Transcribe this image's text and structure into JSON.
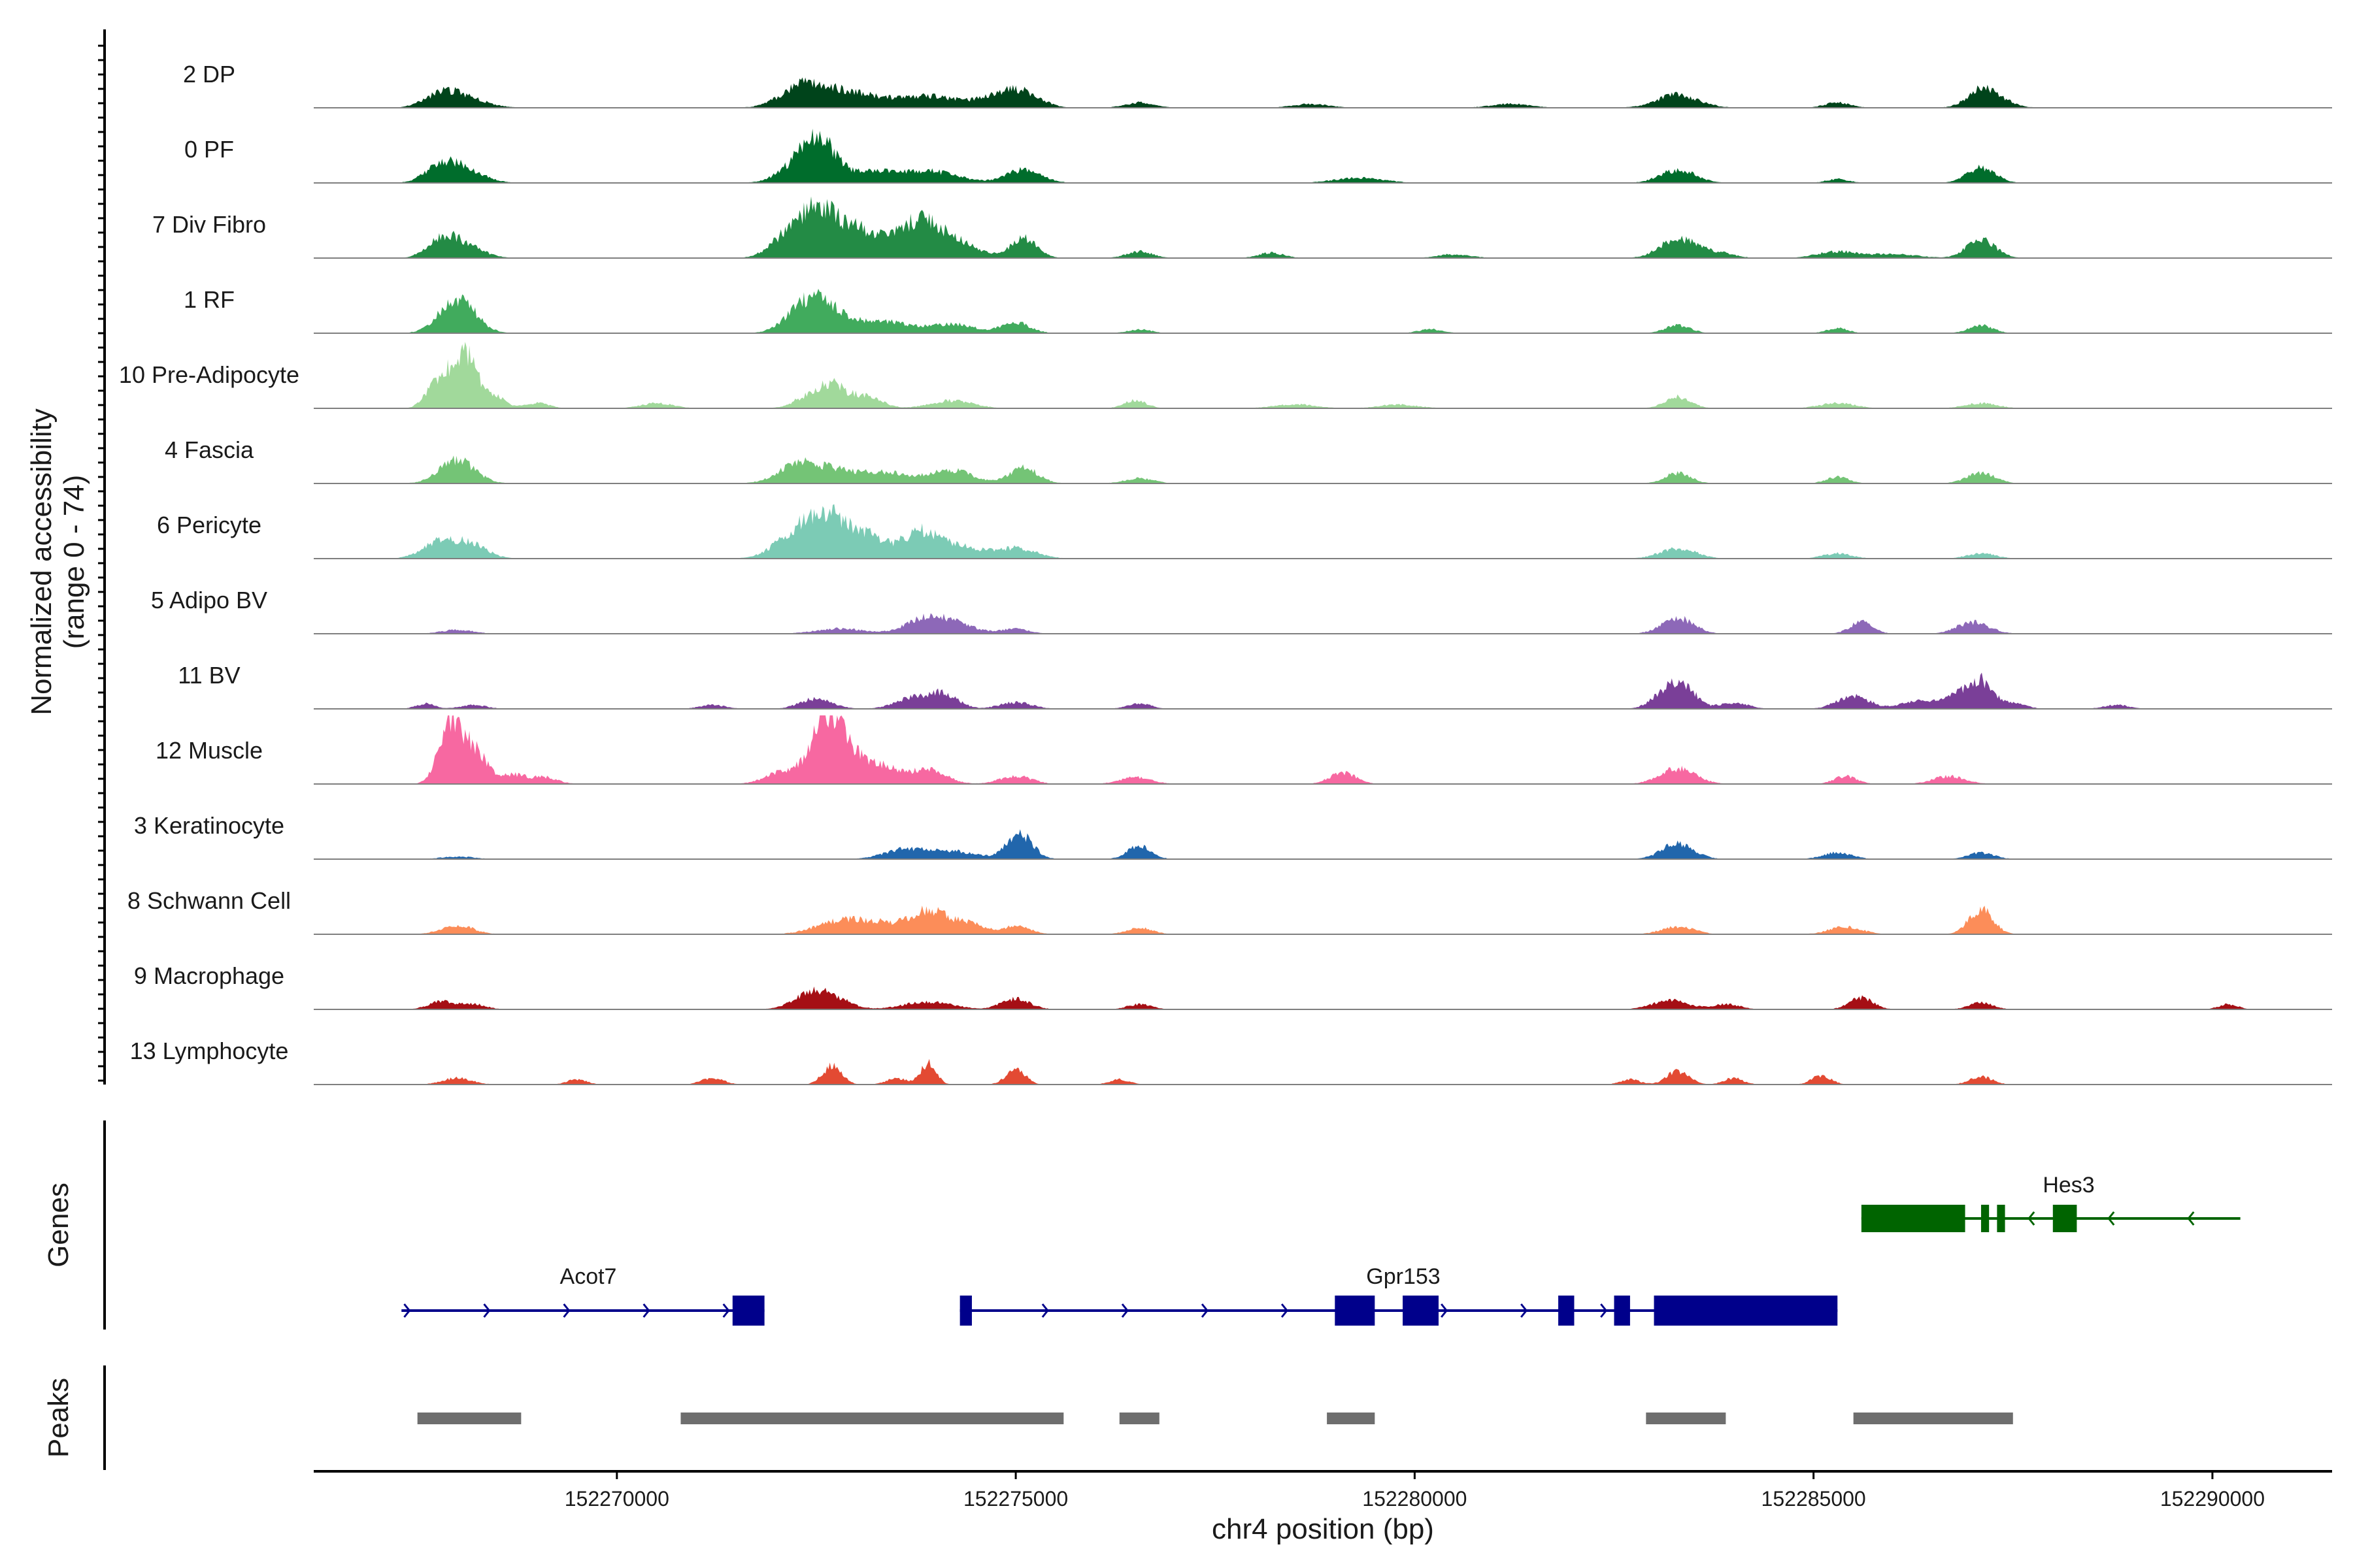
{
  "chart_data": {
    "type": "area",
    "title": "",
    "xlabel": "chr4 position (bp)",
    "ylabel_line1": "Normalized accessibility",
    "ylabel_line2": "(range 0 - 74)",
    "xlim": [
      152266200,
      152291500
    ],
    "ylim": [
      0,
      74
    ],
    "x_ticks": [
      152270000,
      152275000,
      152280000,
      152285000,
      152290000
    ],
    "x_tick_labels": [
      "152270000",
      "152275000",
      "152280000",
      "152285000",
      "152290000"
    ],
    "tracks": [
      {
        "name": "2 DP",
        "color": "#00441b",
        "peaks": [
          [
            152267800,
            9,
            220
          ],
          [
            152268100,
            7,
            260
          ],
          [
            152272300,
            12,
            260
          ],
          [
            152272600,
            10,
            320
          ],
          [
            152273100,
            7,
            300
          ],
          [
            152273900,
            9,
            360
          ],
          [
            152274800,
            8,
            280
          ],
          [
            152275100,
            9,
            220
          ],
          [
            152276550,
            4,
            180
          ],
          [
            152278700,
            3,
            220
          ],
          [
            152281200,
            3,
            240
          ],
          [
            152283300,
            10,
            260
          ],
          [
            152285300,
            4,
            160
          ],
          [
            152287100,
            12,
            180
          ],
          [
            152287300,
            5,
            200
          ]
        ]
      },
      {
        "name": "0 PF",
        "color": "#006d2c",
        "peaks": [
          [
            152267800,
            12,
            200
          ],
          [
            152268100,
            9,
            240
          ],
          [
            152272300,
            16,
            240
          ],
          [
            152272550,
            26,
            180
          ],
          [
            152273100,
            9,
            300
          ],
          [
            152273900,
            9,
            360
          ],
          [
            152275100,
            10,
            220
          ],
          [
            152279300,
            4,
            300
          ],
          [
            152283300,
            10,
            220
          ],
          [
            152285300,
            3,
            140
          ],
          [
            152287100,
            12,
            180
          ]
        ]
      },
      {
        "name": "7 Div Fibro",
        "color": "#238b45",
        "peaks": [
          [
            152267800,
            14,
            180
          ],
          [
            152268100,
            9,
            220
          ],
          [
            152272100,
            14,
            200
          ],
          [
            152272500,
            33,
            220
          ],
          [
            152273000,
            22,
            300
          ],
          [
            152273800,
            28,
            260
          ],
          [
            152274300,
            10,
            260
          ],
          [
            152275100,
            16,
            160
          ],
          [
            152276550,
            5,
            160
          ],
          [
            152278200,
            4,
            160
          ],
          [
            152280500,
            3,
            200
          ],
          [
            152283300,
            15,
            220
          ],
          [
            152285300,
            5,
            250
          ],
          [
            152287100,
            14,
            180
          ],
          [
            152283800,
            4,
            200
          ],
          [
            152286000,
            3,
            300
          ]
        ]
      },
      {
        "name": "1 RF",
        "color": "#41ab5d",
        "peaks": [
          [
            152268000,
            27,
            220
          ],
          [
            152272400,
            20,
            250
          ],
          [
            152272700,
            12,
            300
          ],
          [
            152273400,
            8,
            300
          ],
          [
            152274200,
            7,
            280
          ],
          [
            152275000,
            8,
            180
          ],
          [
            152276550,
            3,
            150
          ],
          [
            152280200,
            3,
            150
          ],
          [
            152283300,
            6,
            160
          ],
          [
            152285300,
            4,
            130
          ],
          [
            152287100,
            6,
            150
          ]
        ]
      },
      {
        "name": "10 Pre-Adipocyte",
        "color": "#a1d99b",
        "peaks": [
          [
            152267700,
            16,
            120
          ],
          [
            152267950,
            27,
            120
          ],
          [
            152268150,
            33,
            120
          ],
          [
            152268450,
            10,
            140
          ],
          [
            152269000,
            4,
            150
          ],
          [
            152270500,
            4,
            200
          ],
          [
            152272400,
            9,
            180
          ],
          [
            152272700,
            16,
            150
          ],
          [
            152273100,
            10,
            200
          ],
          [
            152274200,
            6,
            260
          ],
          [
            152276500,
            6,
            140
          ],
          [
            152278500,
            3,
            260
          ],
          [
            152279800,
            3,
            240
          ],
          [
            152283300,
            9,
            160
          ],
          [
            152285300,
            4,
            220
          ],
          [
            152287100,
            4,
            200
          ]
        ]
      },
      {
        "name": "4 Fascia",
        "color": "#74c476",
        "peaks": [
          [
            152268000,
            18,
            220
          ],
          [
            152272300,
            15,
            260
          ],
          [
            152272800,
            8,
            260
          ],
          [
            152273400,
            8,
            300
          ],
          [
            152274200,
            10,
            260
          ],
          [
            152275100,
            12,
            180
          ],
          [
            152276550,
            4,
            180
          ],
          [
            152283300,
            8,
            160
          ],
          [
            152285300,
            5,
            140
          ],
          [
            152287100,
            8,
            180
          ]
        ]
      },
      {
        "name": "6 Pericyte",
        "color": "#7ccbb5",
        "peaks": [
          [
            152267800,
            14,
            220
          ],
          [
            152268200,
            9,
            200
          ],
          [
            152272200,
            15,
            250
          ],
          [
            152272600,
            30,
            240
          ],
          [
            152273100,
            18,
            250
          ],
          [
            152273800,
            20,
            220
          ],
          [
            152274300,
            9,
            260
          ],
          [
            152275000,
            8,
            250
          ],
          [
            152283300,
            8,
            220
          ],
          [
            152285300,
            4,
            180
          ],
          [
            152287100,
            4,
            180
          ]
        ]
      },
      {
        "name": "5 Adipo BV",
        "color": "#8d68b8",
        "peaks": [
          [
            152268000,
            3,
            200
          ],
          [
            152272800,
            4,
            300
          ],
          [
            152273900,
            12,
            260
          ],
          [
            152274300,
            5,
            260
          ],
          [
            152275000,
            4,
            160
          ],
          [
            152283300,
            12,
            200
          ],
          [
            152285600,
            9,
            140
          ],
          [
            152287000,
            9,
            200
          ]
        ]
      },
      {
        "name": "11 BV",
        "color": "#7a3f98",
        "peaks": [
          [
            152267600,
            4,
            120
          ],
          [
            152268200,
            3,
            160
          ],
          [
            152271200,
            3,
            160
          ],
          [
            152272500,
            8,
            200
          ],
          [
            152273700,
            8,
            220
          ],
          [
            152274100,
            11,
            180
          ],
          [
            152275000,
            5,
            200
          ],
          [
            152276550,
            4,
            150
          ],
          [
            152283100,
            9,
            160
          ],
          [
            152283350,
            19,
            160
          ],
          [
            152284000,
            5,
            180
          ],
          [
            152285500,
            10,
            200
          ],
          [
            152286300,
            6,
            200
          ],
          [
            152286800,
            10,
            180
          ],
          [
            152287100,
            20,
            150
          ],
          [
            152287500,
            4,
            160
          ],
          [
            152288800,
            3,
            160
          ]
        ]
      },
      {
        "name": "12 Muscle",
        "color": "#f768a1",
        "peaks": [
          [
            152267900,
            44,
            140
          ],
          [
            152268200,
            26,
            160
          ],
          [
            152268700,
            7,
            160
          ],
          [
            152269100,
            5,
            160
          ],
          [
            152272100,
            10,
            220
          ],
          [
            152272600,
            38,
            180
          ],
          [
            152272800,
            22,
            200
          ],
          [
            152273100,
            10,
            200
          ],
          [
            152273400,
            9,
            200
          ],
          [
            152273900,
            11,
            220
          ],
          [
            152275000,
            6,
            200
          ],
          [
            152276500,
            5,
            200
          ],
          [
            152279100,
            9,
            160
          ],
          [
            152283300,
            12,
            220
          ],
          [
            152285400,
            6,
            140
          ],
          [
            152286700,
            6,
            200
          ]
        ]
      },
      {
        "name": "3 Keratinocyte",
        "color": "#2166ac",
        "peaks": [
          [
            152268000,
            2,
            200
          ],
          [
            152273600,
            7,
            260
          ],
          [
            152274200,
            6,
            300
          ],
          [
            152275050,
            19,
            160
          ],
          [
            152276550,
            10,
            150
          ],
          [
            152283300,
            12,
            200
          ],
          [
            152285300,
            5,
            180
          ],
          [
            152287100,
            5,
            160
          ]
        ]
      },
      {
        "name": "8 Schwann Cell",
        "color": "#fc8d59",
        "peaks": [
          [
            152268000,
            7,
            200
          ],
          [
            152272800,
            10,
            300
          ],
          [
            152273300,
            7,
            250
          ],
          [
            152273900,
            18,
            230
          ],
          [
            152274400,
            8,
            200
          ],
          [
            152275000,
            6,
            180
          ],
          [
            152276550,
            5,
            160
          ],
          [
            152283300,
            6,
            200
          ],
          [
            152285400,
            6,
            200
          ],
          [
            152287100,
            19,
            150
          ]
        ]
      },
      {
        "name": "9 Macrophage",
        "color": "#a50f15",
        "peaks": [
          [
            152267800,
            6,
            160
          ],
          [
            152268200,
            4,
            160
          ],
          [
            152272400,
            10,
            220
          ],
          [
            152272700,
            8,
            220
          ],
          [
            152273900,
            6,
            300
          ],
          [
            152275000,
            8,
            180
          ],
          [
            152276550,
            4,
            150
          ],
          [
            152283200,
            7,
            220
          ],
          [
            152283900,
            4,
            180
          ],
          [
            152285600,
            9,
            150
          ],
          [
            152287100,
            5,
            150
          ],
          [
            152290200,
            4,
            120
          ]
        ]
      },
      {
        "name": "13 Lymphocyte",
        "color": "#e34a33",
        "peaks": [
          [
            152268000,
            5,
            180
          ],
          [
            152269500,
            4,
            120
          ],
          [
            152271200,
            5,
            140
          ],
          [
            152272700,
            14,
            120
          ],
          [
            152273500,
            5,
            120
          ],
          [
            152273900,
            16,
            100
          ],
          [
            152275000,
            12,
            120
          ],
          [
            152276300,
            4,
            120
          ],
          [
            152282700,
            4,
            120
          ],
          [
            152283300,
            10,
            140
          ],
          [
            152284000,
            5,
            120
          ],
          [
            152285100,
            7,
            120
          ],
          [
            152287100,
            6,
            140
          ]
        ]
      }
    ],
    "genes": [
      {
        "name": "Acot7",
        "strand": "+",
        "color": "#00008b",
        "start": 152267300,
        "end": 152271850,
        "exons": [
          [
            152271450,
            152271850
          ]
        ]
      },
      {
        "name": "Gpr153",
        "strand": "+",
        "color": "#00008b",
        "start": 152274300,
        "end": 152285300,
        "exons": [
          [
            152274300,
            152274450
          ],
          [
            152279000,
            152279500
          ],
          [
            152279850,
            152280300
          ],
          [
            152281800,
            152282000
          ],
          [
            152282500,
            152282700
          ],
          [
            152283000,
            152285300
          ]
        ]
      },
      {
        "name": "Hes3",
        "strand": "-",
        "color": "#006400",
        "start": 152285600,
        "end": 152290350,
        "exons": [
          [
            152285600,
            152286900
          ],
          [
            152287100,
            152287200
          ],
          [
            152287300,
            152287400
          ],
          [
            152288000,
            152288300
          ]
        ]
      }
    ],
    "gene_rows": {
      "Hes3": 0,
      "Acot7": 1,
      "Gpr153": 1
    },
    "peak_regions": [
      [
        152267500,
        152268800
      ],
      [
        152270800,
        152275600
      ],
      [
        152276300,
        152276800
      ],
      [
        152278900,
        152279500
      ],
      [
        152282900,
        152283900
      ],
      [
        152285500,
        152287500
      ]
    ],
    "panel_labels": {
      "genes": "Genes",
      "peaks": "Peaks"
    }
  }
}
